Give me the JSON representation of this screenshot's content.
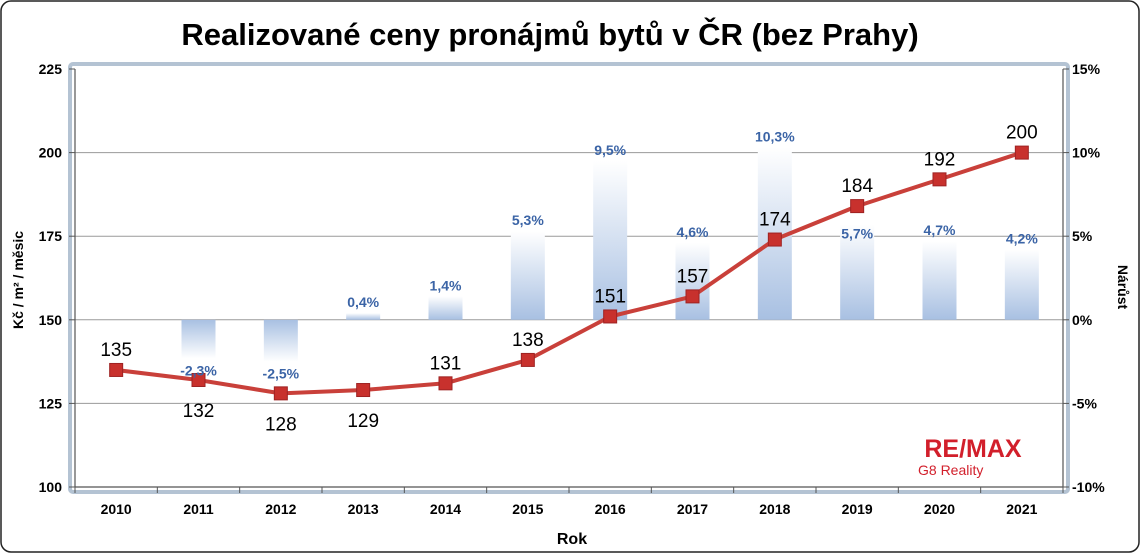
{
  "chart_data": {
    "type": "line",
    "title": "Realizované ceny pronájmů bytů v ČR (bez Prahy)",
    "xlabel": "Rok",
    "ylabel": "Kč / m² / měsic",
    "y2label": "Nárůst",
    "categories": [
      "2010",
      "2011",
      "2012",
      "2013",
      "2014",
      "2015",
      "2016",
      "2017",
      "2018",
      "2019",
      "2020",
      "2021"
    ],
    "ylim": [
      100,
      225
    ],
    "yticks": [
      100,
      125,
      150,
      175,
      200,
      225
    ],
    "y2lim": [
      -10,
      15
    ],
    "y2ticks": [
      -10,
      -5,
      0,
      5,
      10,
      15
    ],
    "y2_suffix": "%",
    "grid": true,
    "legend": "none",
    "series": [
      {
        "type": "line",
        "axis": "left",
        "values": [
          135,
          132,
          128,
          129,
          131,
          138,
          151,
          157,
          174,
          184,
          192,
          200
        ],
        "color": "#c9403a",
        "marker_color": "#c8312d"
      },
      {
        "type": "bar",
        "axis": "right",
        "unit": "%",
        "values": [
          null,
          -2.3,
          -2.5,
          0.4,
          1.4,
          5.3,
          9.5,
          4.6,
          10.3,
          5.7,
          4.7,
          4.2
        ],
        "color": "#a8c0e2",
        "label_color": "#3b64a6"
      }
    ]
  },
  "logo": {
    "brand": "RE/MAX",
    "sub": "G8 Reality",
    "color": "#d21f2b"
  }
}
